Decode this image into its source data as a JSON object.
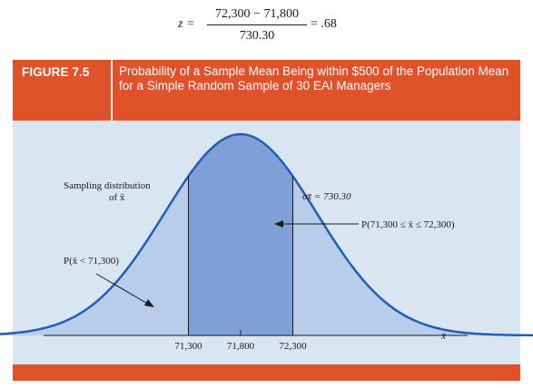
{
  "equation": {
    "lhs": "z =",
    "numerator": "72,300 − 71,800",
    "denominator": "730.30",
    "result": "= .68"
  },
  "figure": {
    "label": "FIGURE 7.5",
    "caption": "Probability of a Sample Mean Being within $500 of the Population Mean for a Simple Random Sample of 30 EAI Managers"
  },
  "colors": {
    "header_bg": "#e0522a",
    "panel_bg": "#d9e6f2",
    "curve": "#1f5fb5",
    "tail_fill": "#b8cdea",
    "center_fill": "#7f9fd6"
  },
  "chart_data": {
    "type": "area",
    "distribution": "normal",
    "mean": 71800,
    "std_error": 730.3,
    "shaded_interval": [
      71300,
      72300
    ],
    "x_ticks": [
      "71,300",
      "71,800",
      "72,300"
    ],
    "x_tick_values": [
      71300,
      71800,
      72300
    ],
    "xlabel": "x̄",
    "annotations": {
      "sampling_line1": "Sampling distribution",
      "sampling_line2": "of x̄",
      "sigma": "σx̄ = 730.30",
      "prob_interval": "P(71,300 ≤ x̄ ≤ 72,300)",
      "prob_left": "P(x̄ < 71,300)"
    }
  }
}
